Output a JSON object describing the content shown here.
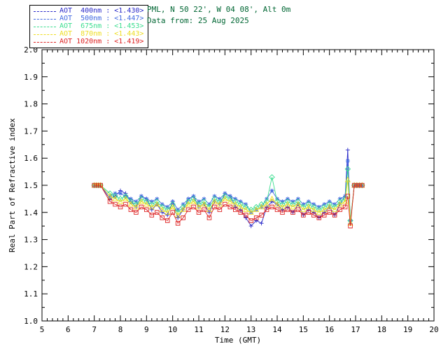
{
  "header": {
    "site": "PML, N 50 22', W 04 08', Alt 0m",
    "date_line": "Data from: 25 Aug 2025",
    "color": "#006633"
  },
  "legend": {
    "position": "top-left",
    "items": [
      {
        "label": "AOT  400nm : <1.430>",
        "color": "#2929c8"
      },
      {
        "label": "AOT  500nm : <1.447>",
        "color": "#4169e1"
      },
      {
        "label": "AOT  675nm : <1.453>",
        "color": "#3bdd8f"
      },
      {
        "label": "AOT  870nm : <1.443>",
        "color": "#eedd22"
      },
      {
        "label": "AOT 1020nm : <1.419>",
        "color": "#dd2222"
      }
    ]
  },
  "chart_data": {
    "type": "line",
    "title": "",
    "xlabel": "Time (GMT)",
    "ylabel": "Real Part of Refractive index",
    "xlim": [
      5,
      20
    ],
    "ylim": [
      1.0,
      2.0
    ],
    "grid": false,
    "legend_position": "top-left",
    "xticks": [
      5,
      6,
      7,
      8,
      9,
      10,
      11,
      12,
      13,
      14,
      15,
      16,
      17,
      18,
      19,
      20
    ],
    "ytick_labels": [
      "1.0",
      "1.1",
      "1.2",
      "1.3",
      "1.4",
      "1.5",
      "1.6",
      "1.7",
      "1.8",
      "1.9",
      "2.0"
    ],
    "x": [
      7.0,
      7.08,
      7.16,
      7.24,
      7.6,
      7.8,
      8.0,
      8.2,
      8.4,
      8.6,
      8.8,
      9.0,
      9.2,
      9.4,
      9.6,
      9.8,
      10.0,
      10.2,
      10.4,
      10.6,
      10.8,
      11.0,
      11.2,
      11.4,
      11.6,
      11.8,
      12.0,
      12.2,
      12.4,
      12.6,
      12.8,
      13.0,
      13.2,
      13.4,
      13.6,
      13.8,
      14.0,
      14.2,
      14.4,
      14.6,
      14.8,
      15.0,
      15.2,
      15.4,
      15.6,
      15.8,
      16.0,
      16.2,
      16.4,
      16.6,
      16.7,
      16.8,
      16.95,
      17.05,
      17.15,
      17.25
    ],
    "series": [
      {
        "name": "AOT 400nm",
        "mean_label": "<1.430>",
        "color": "#2929c8",
        "marker": "plus",
        "values": [
          1.5,
          1.5,
          1.5,
          1.5,
          1.45,
          1.46,
          1.48,
          1.47,
          1.44,
          1.42,
          1.46,
          1.45,
          1.41,
          1.43,
          1.4,
          1.39,
          1.44,
          1.38,
          1.41,
          1.45,
          1.46,
          1.42,
          1.43,
          1.4,
          1.44,
          1.43,
          1.47,
          1.46,
          1.42,
          1.41,
          1.38,
          1.35,
          1.37,
          1.36,
          1.42,
          1.44,
          1.43,
          1.41,
          1.42,
          1.4,
          1.43,
          1.39,
          1.41,
          1.4,
          1.38,
          1.4,
          1.42,
          1.39,
          1.43,
          1.46,
          1.63,
          1.36,
          1.5,
          1.5,
          1.5,
          1.5
        ]
      },
      {
        "name": "AOT 500nm",
        "mean_label": "<1.447>",
        "color": "#4169e1",
        "marker": "asterisk",
        "values": [
          1.5,
          1.5,
          1.5,
          1.5,
          1.46,
          1.47,
          1.47,
          1.46,
          1.45,
          1.44,
          1.46,
          1.45,
          1.44,
          1.45,
          1.43,
          1.42,
          1.44,
          1.41,
          1.43,
          1.45,
          1.46,
          1.44,
          1.45,
          1.43,
          1.46,
          1.45,
          1.47,
          1.46,
          1.45,
          1.44,
          1.43,
          1.4,
          1.41,
          1.42,
          1.45,
          1.48,
          1.45,
          1.44,
          1.45,
          1.44,
          1.45,
          1.43,
          1.44,
          1.43,
          1.42,
          1.43,
          1.44,
          1.43,
          1.45,
          1.46,
          1.59,
          1.37,
          1.5,
          1.5,
          1.5,
          1.5
        ]
      },
      {
        "name": "AOT 675nm",
        "mean_label": "<1.453>",
        "color": "#3bdd8f",
        "marker": "diamond",
        "values": [
          1.5,
          1.5,
          1.5,
          1.5,
          1.47,
          1.46,
          1.45,
          1.46,
          1.44,
          1.43,
          1.45,
          1.44,
          1.43,
          1.44,
          1.42,
          1.41,
          1.43,
          1.4,
          1.42,
          1.44,
          1.45,
          1.43,
          1.44,
          1.42,
          1.45,
          1.44,
          1.46,
          1.45,
          1.44,
          1.43,
          1.42,
          1.41,
          1.42,
          1.43,
          1.44,
          1.53,
          1.44,
          1.43,
          1.44,
          1.43,
          1.44,
          1.42,
          1.43,
          1.42,
          1.41,
          1.42,
          1.43,
          1.42,
          1.44,
          1.45,
          1.56,
          1.37,
          1.5,
          1.5,
          1.5,
          1.5
        ]
      },
      {
        "name": "AOT 870nm",
        "mean_label": "<1.443>",
        "color": "#eedd22",
        "marker": "triangle",
        "values": [
          1.5,
          1.5,
          1.5,
          1.5,
          1.46,
          1.45,
          1.44,
          1.45,
          1.43,
          1.42,
          1.44,
          1.43,
          1.42,
          1.43,
          1.41,
          1.4,
          1.42,
          1.39,
          1.41,
          1.43,
          1.44,
          1.42,
          1.43,
          1.41,
          1.44,
          1.43,
          1.45,
          1.44,
          1.43,
          1.42,
          1.41,
          1.4,
          1.41,
          1.42,
          1.43,
          1.45,
          1.43,
          1.42,
          1.43,
          1.42,
          1.43,
          1.41,
          1.42,
          1.41,
          1.4,
          1.41,
          1.42,
          1.41,
          1.43,
          1.44,
          1.52,
          1.36,
          1.5,
          1.5,
          1.5,
          1.5
        ]
      },
      {
        "name": "AOT 1020nm",
        "mean_label": "<1.419>",
        "color": "#dd2222",
        "marker": "square",
        "values": [
          1.5,
          1.5,
          1.5,
          1.5,
          1.44,
          1.43,
          1.42,
          1.43,
          1.41,
          1.4,
          1.42,
          1.41,
          1.39,
          1.4,
          1.38,
          1.37,
          1.4,
          1.36,
          1.38,
          1.41,
          1.42,
          1.4,
          1.41,
          1.38,
          1.42,
          1.41,
          1.43,
          1.42,
          1.41,
          1.4,
          1.39,
          1.37,
          1.38,
          1.39,
          1.41,
          1.42,
          1.41,
          1.4,
          1.41,
          1.4,
          1.41,
          1.39,
          1.4,
          1.39,
          1.38,
          1.39,
          1.4,
          1.39,
          1.41,
          1.42,
          1.46,
          1.35,
          1.5,
          1.5,
          1.5,
          1.5
        ]
      }
    ]
  }
}
